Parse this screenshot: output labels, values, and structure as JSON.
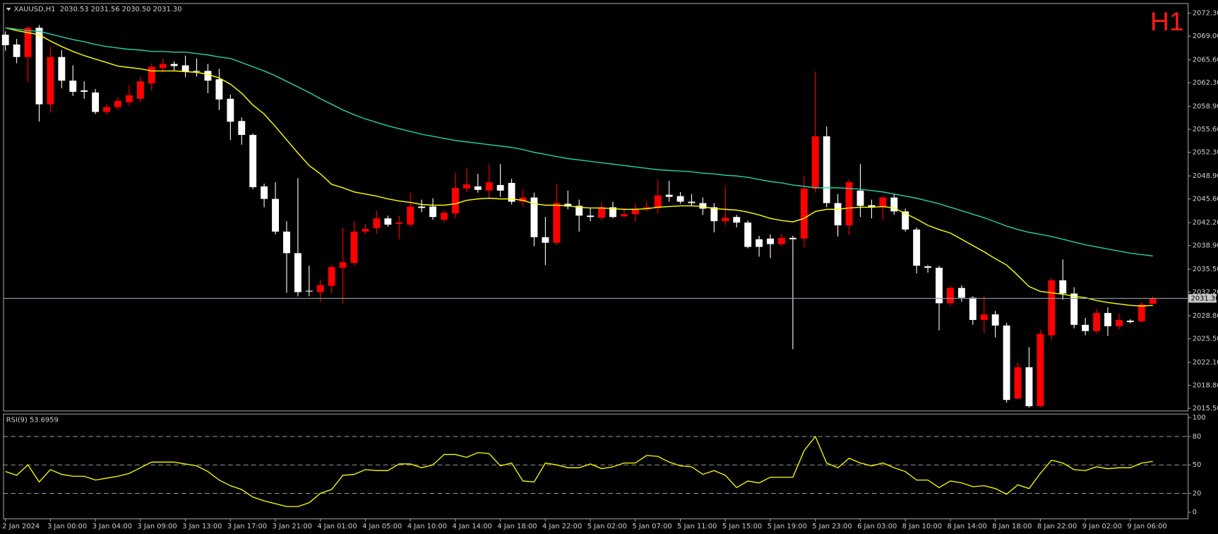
{
  "chart_data": [
    {
      "type": "candlestick",
      "title": "XAUUSD,H1  2030.53 2031.56 2030.50 2031.30",
      "timeframe": "H1",
      "categories": [
        "2 Jan 2024",
        null,
        null,
        null,
        "3 Jan 00:00",
        null,
        null,
        null,
        "3 Jan 04:00",
        null,
        null,
        null,
        "3 Jan 09:00",
        null,
        null,
        null,
        "3 Jan 13:00",
        null,
        null,
        null,
        "3 Jan 17:00",
        null,
        null,
        null,
        "3 Jan 21:00",
        null,
        null,
        null,
        "4 Jan 01:00",
        null,
        null,
        null,
        "4 Jan 05:00",
        null,
        null,
        null,
        "4 Jan 10:00",
        null,
        null,
        null,
        "4 Jan 14:00",
        null,
        null,
        null,
        "4 Jan 18:00",
        null,
        null,
        null,
        "4 Jan 22:00",
        null,
        null,
        null,
        "5 Jan 02:00",
        null,
        null,
        null,
        "5 Jan 07:00",
        null,
        null,
        null,
        "5 Jan 11:00",
        null,
        null,
        null,
        "5 Jan 15:00",
        null,
        null,
        null,
        "5 Jan 19:00",
        null,
        null,
        null,
        "5 Jan 23:00",
        null,
        null,
        null,
        "6 Jan 03:00",
        null,
        null,
        null,
        "8 Jan 10:00",
        null,
        null,
        null,
        "8 Jan 14:00",
        null,
        null,
        null,
        "8 Jan 18:00",
        null,
        null,
        null,
        "8 Jan 22:00",
        null,
        null,
        null,
        "9 Jan 02:00",
        null,
        null,
        null,
        "9 Jan 06:00",
        null,
        null
      ],
      "open": [
        2069.2,
        2067.8,
        2066.0,
        2070.2,
        2059.2,
        2066.0,
        2062.6,
        2061.2,
        2060.9,
        2058.1,
        2058.8,
        2059.5,
        2060.0,
        2062.2,
        2064.4,
        2065.0,
        2064.8,
        2064.0,
        2064.0,
        2062.8,
        2060.0,
        2056.8,
        2054.8,
        2047.4,
        2045.6,
        2040.9,
        2037.8,
        2032.4,
        2032.2,
        2033.1,
        2035.7,
        2036.4,
        2040.9,
        2041.4,
        2042.8,
        2042.0,
        2041.9,
        2044.5,
        2044.5,
        2042.6,
        2043.5,
        2047.1,
        2047.4,
        2046.8,
        2047.6,
        2047.9,
        2045.2,
        2045.8,
        2040.1,
        2039.3,
        2044.9,
        2044.6,
        2043.2,
        2042.9,
        2044.4,
        2043.1,
        2043.4,
        2044.1,
        2044.3,
        2046.2,
        2046.0,
        2045.2,
        2045.0,
        2044.4,
        2042.4,
        2043.0,
        2042.2,
        2039.8,
        2039.9,
        2039.1,
        2040.0,
        2039.9,
        2047.1,
        2054.6,
        2045.0,
        2041.8,
        2046.8,
        2044.7,
        2044.4,
        2045.8,
        2043.8,
        2041.2,
        2035.9,
        2035.7,
        2030.6,
        2032.8,
        2031.4,
        2028.2,
        2029.0,
        2027.4,
        2016.9,
        2021.4,
        2015.8,
        2026.0,
        2033.9,
        2032.0,
        2027.5,
        2026.6,
        2029.2,
        2027.3,
        2028.1,
        2028.0,
        2030.53
      ],
      "high": [
        2069.7,
        2068.6,
        2070.5,
        2070.6,
        2067.5,
        2067.0,
        2064.8,
        2062.5,
        2061.4,
        2059.2,
        2060.2,
        2062.0,
        2063.2,
        2065.1,
        2065.8,
        2065.4,
        2066.2,
        2065.8,
        2065.0,
        2064.3,
        2060.6,
        2057.3,
        2055.0,
        2047.8,
        2048.0,
        2042.4,
        2048.6,
        2036.0,
        2034.0,
        2036.1,
        2041.5,
        2042.4,
        2042.0,
        2043.9,
        2043.2,
        2043.2,
        2046.5,
        2045.5,
        2045.7,
        2044.0,
        2049.4,
        2050.0,
        2049.2,
        2050.6,
        2050.6,
        2048.5,
        2047.0,
        2046.5,
        2043.0,
        2047.8,
        2046.8,
        2045.5,
        2044.3,
        2045.1,
        2045.2,
        2044.2,
        2044.9,
        2045.3,
        2048.4,
        2048.2,
        2046.6,
        2046.3,
        2045.8,
        2045.0,
        2047.3,
        2043.3,
        2042.5,
        2040.3,
        2040.5,
        2040.6,
        2040.3,
        2048.9,
        2063.9,
        2056.0,
        2046.3,
        2048.4,
        2050.6,
        2045.5,
        2046.0,
        2046.3,
        2044.2,
        2041.5,
        2036.1,
        2036.0,
        2033.1,
        2033.2,
        2031.6,
        2031.7,
        2029.5,
        2027.8,
        2022.1,
        2024.3,
        2026.8,
        2034.2,
        2036.9,
        2032.9,
        2028.5,
        2029.8,
        2030.0,
        2029.1,
        2028.3,
        2030.8,
        2031.56
      ],
      "low": [
        2066.9,
        2065.1,
        2062.4,
        2056.7,
        2058.0,
        2061.5,
        2060.4,
        2060.0,
        2057.8,
        2057.7,
        2058.4,
        2059.0,
        2059.5,
        2061.2,
        2063.8,
        2064.0,
        2063.1,
        2063.2,
        2060.8,
        2058.4,
        2054.1,
        2053.4,
        2047.0,
        2044.4,
        2040.5,
        2032.1,
        2031.6,
        2031.6,
        2030.8,
        2032.0,
        2030.5,
        2036.0,
        2040.5,
        2040.6,
        2041.6,
        2039.8,
        2041.6,
        2043.7,
        2042.6,
        2042.2,
        2042.8,
        2046.6,
        2046.5,
        2045.7,
        2045.9,
        2044.8,
        2044.5,
        2038.8,
        2036.1,
        2039.0,
        2044.1,
        2040.9,
        2042.4,
        2042.5,
        2042.8,
        2042.9,
        2042.3,
        2043.8,
        2043.5,
        2045.2,
        2044.9,
        2044.6,
        2043.3,
        2040.8,
        2041.8,
        2041.5,
        2038.5,
        2037.3,
        2037.1,
        2038.8,
        2024.0,
        2038.6,
        2046.5,
        2044.4,
        2040.2,
        2040.4,
        2043.0,
        2042.8,
        2042.5,
        2043.3,
        2040.9,
        2034.9,
        2035.0,
        2026.7,
        2030.2,
        2030.8,
        2027.5,
        2026.3,
        2025.7,
        2016.3,
        2016.8,
        2015.6,
        2015.6,
        2025.3,
        2031.1,
        2027.0,
        2026.0,
        2026.2,
        2025.9,
        2026.8,
        2027.7,
        2027.9,
        2030.5
      ],
      "close": [
        2067.7,
        2066.0,
        2070.2,
        2059.2,
        2066.0,
        2062.6,
        2061.0,
        2061.0,
        2058.1,
        2058.8,
        2059.7,
        2060.5,
        2062.5,
        2064.6,
        2065.0,
        2064.7,
        2063.9,
        2063.9,
        2062.6,
        2059.9,
        2056.7,
        2054.8,
        2047.3,
        2045.6,
        2040.9,
        2037.8,
        2032.2,
        2032.3,
        2033.2,
        2035.8,
        2036.5,
        2040.9,
        2041.3,
        2042.8,
        2041.9,
        2042.2,
        2044.5,
        2044.3,
        2043.0,
        2043.6,
        2047.2,
        2047.7,
        2046.9,
        2048.0,
        2046.8,
        2045.2,
        2045.8,
        2040.1,
        2039.3,
        2045.0,
        2044.5,
        2043.2,
        2043.0,
        2044.4,
        2043.0,
        2043.4,
        2044.2,
        2044.4,
        2046.1,
        2045.9,
        2045.2,
        2045.0,
        2044.2,
        2042.4,
        2042.9,
        2042.2,
        2038.7,
        2038.7,
        2039.1,
        2040.0,
        2039.8,
        2047.1,
        2054.6,
        2045.0,
        2041.8,
        2048.0,
        2044.6,
        2044.4,
        2045.8,
        2043.8,
        2041.2,
        2036.0,
        2035.7,
        2030.6,
        2032.8,
        2031.4,
        2028.2,
        2029.0,
        2027.4,
        2016.7,
        2021.4,
        2015.8,
        2026.2,
        2033.9,
        2032.0,
        2027.5,
        2026.6,
        2029.2,
        2027.3,
        2028.2,
        2027.9,
        2030.4,
        2031.3
      ],
      "up_color": "#ff0000",
      "down_color": "#ffffff",
      "overlays": [
        {
          "color": "#ffff00",
          "values": [
            2070.2,
            2069.8,
            2069.5,
            2069.2,
            2068.3,
            2067.5,
            2066.8,
            2066.2,
            2065.7,
            2065.2,
            2064.7,
            2064.5,
            2064.3,
            2064.0,
            2064.0,
            2064.0,
            2063.9,
            2063.8,
            2063.5,
            2063.0,
            2062.1,
            2060.8,
            2059.1,
            2057.8,
            2056.0,
            2054.1,
            2052.2,
            2050.4,
            2049.2,
            2047.7,
            2047.2,
            2046.6,
            2046.3,
            2046.0,
            2045.6,
            2045.3,
            2045.1,
            2044.8,
            2044.7,
            2044.7,
            2044.9,
            2045.4,
            2045.6,
            2045.7,
            2045.6,
            2045.6,
            2045.4,
            2044.9,
            2044.7,
            2044.7,
            2044.6,
            2044.4,
            2044.3,
            2044.3,
            2044.2,
            2044.1,
            2044.1,
            2044.2,
            2044.4,
            2044.5,
            2044.6,
            2044.6,
            2044.5,
            2044.2,
            2044.1,
            2044.0,
            2043.7,
            2043.3,
            2042.8,
            2042.5,
            2042.3,
            2042.8,
            2043.8,
            2044.1,
            2044.1,
            2044.3,
            2044.4,
            2044.4,
            2044.5,
            2044.3,
            2043.5,
            2042.7,
            2041.8,
            2041.2,
            2040.7,
            2039.8,
            2038.9,
            2038.0,
            2037.0,
            2036.1,
            2034.6,
            2033.0,
            2032.3,
            2032.1,
            2031.9,
            2031.6,
            2031.4,
            2031.0,
            2030.7,
            2030.5,
            2030.3,
            2030.2,
            2030.3
          ]
        },
        {
          "color": "#26d0a4",
          "values": [
            2070.2,
            2070.0,
            2069.8,
            2069.7,
            2069.3,
            2068.9,
            2068.5,
            2068.2,
            2067.8,
            2067.5,
            2067.3,
            2067.1,
            2067.0,
            2066.8,
            2066.8,
            2066.7,
            2066.7,
            2066.5,
            2066.3,
            2066.0,
            2065.8,
            2065.2,
            2064.6,
            2064.0,
            2063.3,
            2062.5,
            2061.7,
            2060.9,
            2060.0,
            2059.2,
            2058.4,
            2057.7,
            2057.1,
            2056.6,
            2056.1,
            2055.7,
            2055.3,
            2054.9,
            2054.6,
            2054.3,
            2054.0,
            2053.8,
            2053.6,
            2053.4,
            2053.2,
            2053.0,
            2052.7,
            2052.3,
            2052.0,
            2051.7,
            2051.4,
            2051.2,
            2051.0,
            2050.8,
            2050.6,
            2050.4,
            2050.2,
            2050.0,
            2049.8,
            2049.7,
            2049.6,
            2049.5,
            2049.3,
            2049.2,
            2049.0,
            2048.9,
            2048.7,
            2048.4,
            2048.1,
            2047.9,
            2047.6,
            2047.4,
            2047.2,
            2047.2,
            2047.2,
            2047.1,
            2047.0,
            2046.8,
            2046.6,
            2046.3,
            2046.0,
            2045.7,
            2045.3,
            2044.9,
            2044.4,
            2043.9,
            2043.4,
            2042.9,
            2042.3,
            2041.7,
            2041.2,
            2040.8,
            2040.5,
            2040.2,
            2039.8,
            2039.4,
            2039.0,
            2038.7,
            2038.4,
            2038.1,
            2037.8,
            2037.6,
            2037.4
          ]
        }
      ],
      "bid": {
        "value": 2031.3,
        "label": "2031.30"
      },
      "bid_color": "#8a9aa6",
      "ylim": [
        2015.17,
        2073.75
      ],
      "yticks": [
        {
          "value": 2072.3,
          "label": "2072.30"
        },
        {
          "value": 2069.0,
          "label": "2069.00"
        },
        {
          "value": 2065.6,
          "label": "2065.60"
        },
        {
          "value": 2062.3,
          "label": "2062.30"
        },
        {
          "value": 2058.9,
          "label": "2058.90"
        },
        {
          "value": 2055.6,
          "label": "2055.60"
        },
        {
          "value": 2052.3,
          "label": "2052.30"
        },
        {
          "value": 2048.9,
          "label": "2048.90"
        },
        {
          "value": 2045.6,
          "label": "2045.60"
        },
        {
          "value": 2042.2,
          "label": "2042.20"
        },
        {
          "value": 2038.9,
          "label": "2038.90"
        },
        {
          "value": 2035.5,
          "label": "2035.50"
        },
        {
          "value": 2032.2,
          "label": "2032.20"
        },
        {
          "value": 2028.8,
          "label": "2028.80"
        },
        {
          "value": 2025.5,
          "label": "2025.50"
        },
        {
          "value": 2022.1,
          "label": "2022.10"
        },
        {
          "value": 2018.8,
          "label": "2018.80"
        },
        {
          "value": 2015.5,
          "label": "2015.50"
        }
      ]
    },
    {
      "type": "line",
      "title": "RSI(9) 53.6959",
      "color": "#ffff00",
      "values": [
        43,
        39,
        50,
        32,
        45,
        40,
        38,
        38,
        34,
        36,
        38,
        41,
        47,
        53,
        53,
        53,
        51,
        49,
        43,
        34,
        28,
        24,
        16,
        12,
        9,
        6,
        6,
        10,
        20,
        24,
        39,
        40,
        45,
        44,
        44,
        51,
        51,
        47,
        50,
        61,
        61,
        58,
        63,
        62,
        49,
        52,
        33,
        32,
        52,
        50,
        47,
        47,
        51,
        46,
        48,
        52,
        52,
        60,
        59,
        53,
        49,
        48,
        40,
        44,
        39,
        26,
        33,
        31,
        37,
        37,
        37,
        65,
        80,
        52,
        47,
        57,
        52,
        49,
        52,
        47,
        43,
        34,
        34,
        26,
        33,
        31,
        27,
        28,
        25,
        19,
        29,
        25,
        41,
        55,
        52,
        45,
        44,
        48,
        46,
        47,
        47,
        52,
        53.6959
      ],
      "levels": [
        20,
        50,
        80
      ],
      "ylim": [
        -6.6,
        104.1
      ],
      "yticks": [
        0,
        20,
        50,
        80,
        100
      ]
    }
  ]
}
